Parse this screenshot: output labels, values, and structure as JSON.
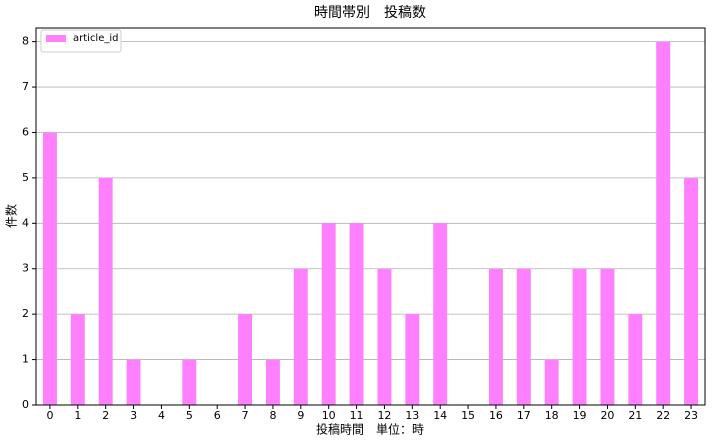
{
  "chart_data": {
    "type": "bar",
    "title": "時間帯別　投稿数",
    "x_label": "投稿時間　単位：時",
    "y_label": "件数",
    "categories": [
      "0",
      "1",
      "2",
      "3",
      "4",
      "5",
      "6",
      "7",
      "8",
      "9",
      "10",
      "11",
      "12",
      "13",
      "14",
      "15",
      "16",
      "17",
      "18",
      "19",
      "20",
      "21",
      "22",
      "23"
    ],
    "series": [
      {
        "name": "article_id",
        "color": "#ff80ff",
        "values": [
          6,
          2,
          5,
          1,
          0,
          1,
          0,
          2,
          1,
          3,
          4,
          4,
          3,
          2,
          4,
          0,
          3,
          3,
          1,
          3,
          3,
          2,
          8,
          5
        ]
      }
    ],
    "ylim": [
      0,
      8.3
    ],
    "yticks": [
      0,
      1,
      2,
      3,
      4,
      5,
      6,
      7,
      8
    ],
    "grid": true,
    "legend": "upper-left"
  }
}
